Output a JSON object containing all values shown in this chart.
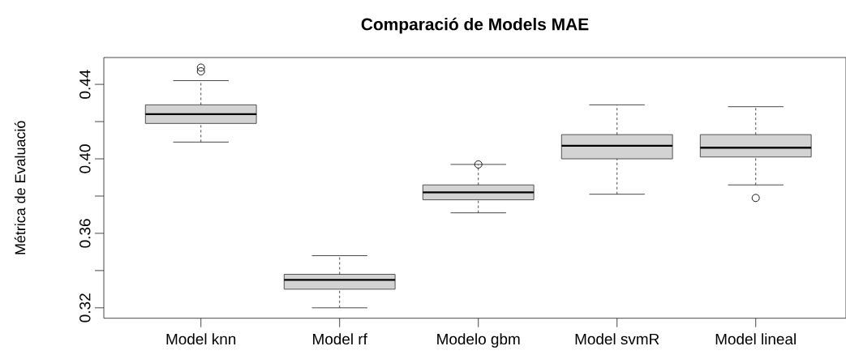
{
  "chart_data": {
    "type": "box",
    "title": "Comparació de Models MAE",
    "ylabel": "Métrica de Evaluació",
    "categories": [
      "Model knn",
      "Model rf",
      "Modelo gbm",
      "Model svmR",
      "Model lineal"
    ],
    "series": [
      {
        "color": "#d3d3d3",
        "boxes": [
          {
            "low": 0.409,
            "q1": 0.419,
            "median": 0.424,
            "q3": 0.429,
            "high": 0.442,
            "outliers": [
              0.449,
              0.447
            ]
          },
          {
            "low": 0.32,
            "q1": 0.33,
            "median": 0.335,
            "q3": 0.338,
            "high": 0.348
          },
          {
            "low": 0.371,
            "q1": 0.378,
            "median": 0.382,
            "q3": 0.386,
            "high": 0.397,
            "outliers": [
              0.397
            ]
          },
          {
            "low": 0.381,
            "q1": 0.4,
            "median": 0.407,
            "q3": 0.413,
            "high": 0.429
          },
          {
            "low": 0.386,
            "q1": 0.401,
            "median": 0.406,
            "q3": 0.413,
            "high": 0.428,
            "outliers": [
              0.379
            ]
          }
        ]
      }
    ],
    "ylim": [
      0.3144,
      0.4544
    ],
    "yticks": [
      0.32,
      {
        "value": 0.34,
        "label": null
      },
      0.36,
      {
        "value": 0.38,
        "label": null
      },
      {
        "value": 0.4,
        "label": "0.40"
      },
      {
        "value": 0.42,
        "label": null
      },
      0.44
    ]
  }
}
